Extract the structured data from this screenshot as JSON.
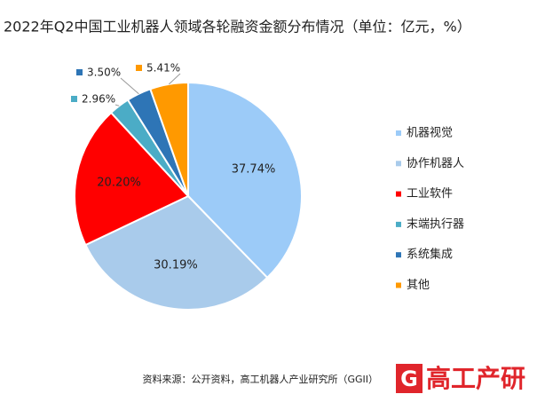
{
  "chart_data": {
    "type": "pie",
    "title": "2022年Q2中国工业机器人领域各轮融资金额分布情况（单位：亿元，%）",
    "categories": [
      "机器视觉",
      "协作机器人",
      "工业软件",
      "末端执行器",
      "系统集成",
      "其他"
    ],
    "values": [
      37.74,
      30.19,
      20.2,
      2.96,
      3.5,
      5.41
    ],
    "value_labels": [
      "37.74%",
      "30.19%",
      "20.20%",
      "2.96%",
      "3.50%",
      "5.41%"
    ],
    "colors": [
      "#9ccbf8",
      "#a9cbeb",
      "#ff0000",
      "#4bacc6",
      "#2e75b6",
      "#ff9900"
    ],
    "legend": "right",
    "source": "资料来源：公开资料，高工机器人产业研究所（GGII）"
  },
  "logo": {
    "mark": "G",
    "text": "高工产研"
  }
}
